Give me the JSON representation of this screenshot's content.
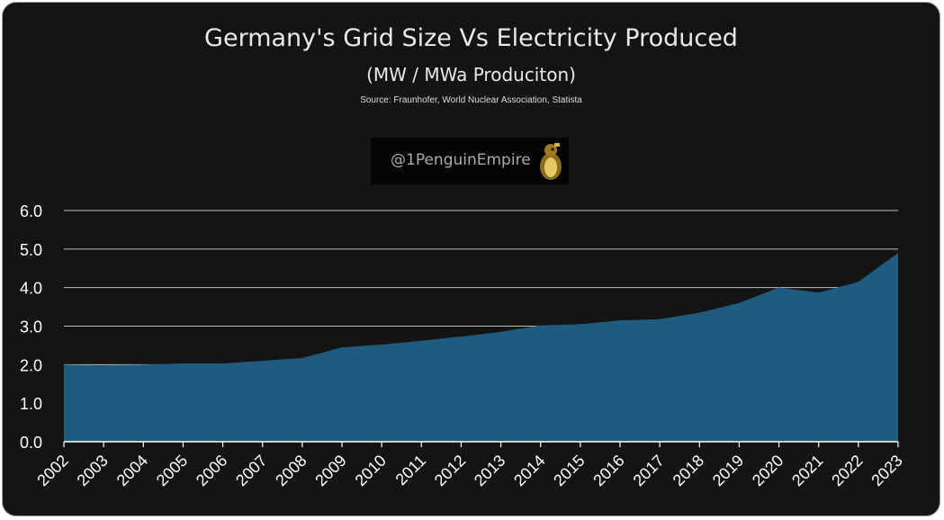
{
  "header": {
    "title": "Germany's Grid Size Vs Electricity Produced",
    "subtitle": "(MW / MWa Produciton)",
    "source": "Source: Fraunhofer, World Nuclear Association, Statista"
  },
  "watermark": {
    "handle": "@1PenguinEmpire",
    "icon": "penguin-logo-icon"
  },
  "colors": {
    "background": "#141414",
    "area": "#1f5b7f",
    "grid": "#bfbfbf",
    "text": "#ffffff"
  },
  "chart_data": {
    "type": "area",
    "title": "Germany's Grid Size Vs Electricity Produced",
    "subtitle": "(MW / MWa Produciton)",
    "x": [
      "2002",
      "2003",
      "2004",
      "2005",
      "2006",
      "2007",
      "2008",
      "2009",
      "2010",
      "2011",
      "2012",
      "2013",
      "2014",
      "2015",
      "2016",
      "2017",
      "2018",
      "2019",
      "2020",
      "2021",
      "2022",
      "2023"
    ],
    "values": [
      2.0,
      1.98,
      2.0,
      2.03,
      2.03,
      2.1,
      2.17,
      2.45,
      2.52,
      2.62,
      2.73,
      2.85,
      3.02,
      3.05,
      3.15,
      3.18,
      3.35,
      3.6,
      4.0,
      3.87,
      4.15,
      4.9
    ],
    "yticks": [
      "0.0",
      "1.0",
      "2.0",
      "3.0",
      "4.0",
      "5.0",
      "6.0"
    ],
    "ylim": [
      0,
      6
    ],
    "grid": true,
    "legend": "none"
  }
}
